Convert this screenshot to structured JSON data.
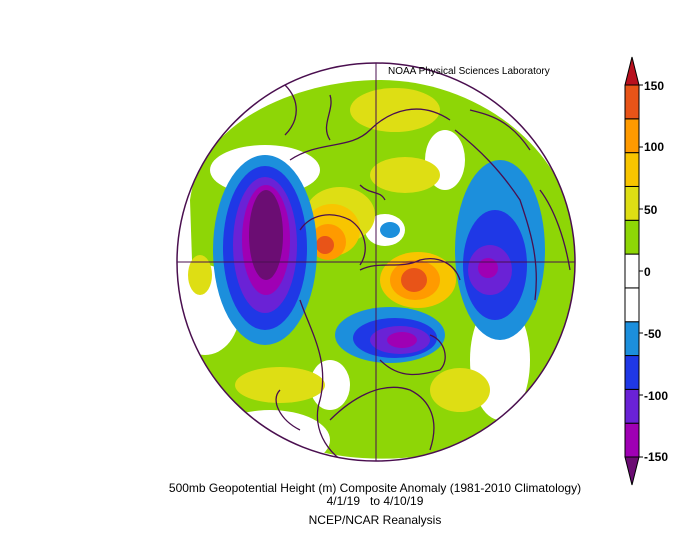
{
  "header": {
    "credit": "NOAA Physical Sciences Laboratory"
  },
  "caption": {
    "line1": "500mb Geopotential Height (m) Composite Anomaly (1981-2010 Climatology)",
    "line2": "4/1/19   to 4/10/19",
    "line3": "NCEP/NCAR Reanalysis"
  },
  "colorbar": {
    "tick_labels": [
      "150",
      "100",
      "50",
      "0",
      "-50",
      "-100",
      "-150"
    ],
    "colors": [
      "#6b0d73",
      "#9f00b4",
      "#6a22d6",
      "#1f38e6",
      "#1c8fdc",
      "#ffffff",
      "#ffffff",
      "#8ed606",
      "#dede14",
      "#f8c500",
      "#ff9a00",
      "#e85418",
      "#b8101e"
    ]
  },
  "map": {
    "projection": "north-polar-stereographic",
    "anomaly_centers": [
      {
        "label": "negative anomaly over northeast Pacific / Alaska Gulf",
        "value": -150
      },
      {
        "label": "negative anomaly over Siberia / northwest Pacific",
        "value": -110
      },
      {
        "label": "negative anomaly over Greenland / north Atlantic",
        "value": -130
      },
      {
        "label": "positive anomaly over Canadian Arctic",
        "value": 110
      },
      {
        "label": "positive anomaly over Scandinavia / Barents Sea",
        "value": 130
      },
      {
        "label": "negative anomaly near North Pole",
        "value": -60
      }
    ]
  }
}
